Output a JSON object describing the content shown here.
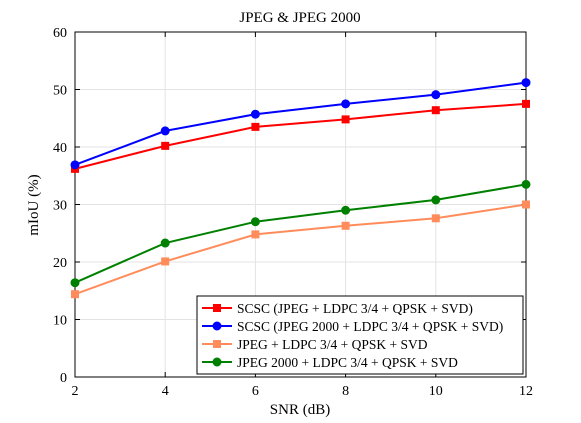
{
  "chart_data": {
    "type": "line",
    "title": "JPEG & JPEG 2000",
    "xlabel": "SNR (dB)",
    "ylabel": "mIoU (%)",
    "xlim": [
      2,
      12
    ],
    "ylim": [
      0,
      60
    ],
    "x_ticks": [
      2,
      4,
      6,
      8,
      10,
      12
    ],
    "y_ticks": [
      0,
      10,
      20,
      30,
      40,
      50,
      60
    ],
    "x": [
      2,
      4,
      6,
      8,
      10,
      12
    ],
    "grid": true,
    "legend_position": "bottom-right",
    "series": [
      {
        "name": "SCSC (JPEG + LDPC 3/4 + QPSK + SVD)",
        "color": "#ff0000",
        "marker": "square",
        "values": [
          36.2,
          40.2,
          43.5,
          44.8,
          46.4,
          47.5
        ]
      },
      {
        "name": "SCSC (JPEG 2000 + LDPC 3/4 + QPSK + SVD)",
        "color": "#0000ff",
        "marker": "circle",
        "values": [
          36.9,
          42.8,
          45.7,
          47.5,
          49.1,
          51.2
        ]
      },
      {
        "name": "JPEG + LDPC 3/4 + QPSK + SVD",
        "color": "#ff8c5a",
        "marker": "square",
        "values": [
          14.4,
          20.1,
          24.8,
          26.3,
          27.6,
          30.0
        ]
      },
      {
        "name": "JPEG 2000 + LDPC 3/4 + QPSK + SVD",
        "color": "#008000",
        "marker": "circle",
        "values": [
          16.4,
          23.3,
          27.0,
          29.0,
          30.8,
          33.5
        ]
      }
    ]
  }
}
